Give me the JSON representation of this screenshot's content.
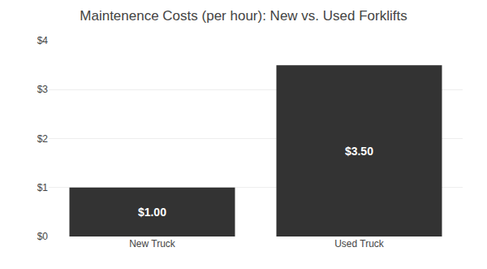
{
  "chart_data": {
    "type": "bar",
    "title": "Maintenence Costs (per hour): New vs. Used Forklifts",
    "categories": [
      "New Truck",
      "Used Truck"
    ],
    "values": [
      1.0,
      3.5
    ],
    "value_labels": [
      "$1.00",
      "$3.50"
    ],
    "data_labels": true,
    "color": "#333333",
    "ylim": [
      0,
      4
    ],
    "yticks": [
      {
        "value": 0,
        "label": "$0"
      },
      {
        "value": 1,
        "label": "$1"
      },
      {
        "value": 2,
        "label": "$2"
      },
      {
        "value": 3,
        "label": "$3"
      },
      {
        "value": 4,
        "label": "$4"
      }
    ],
    "grid": true
  }
}
